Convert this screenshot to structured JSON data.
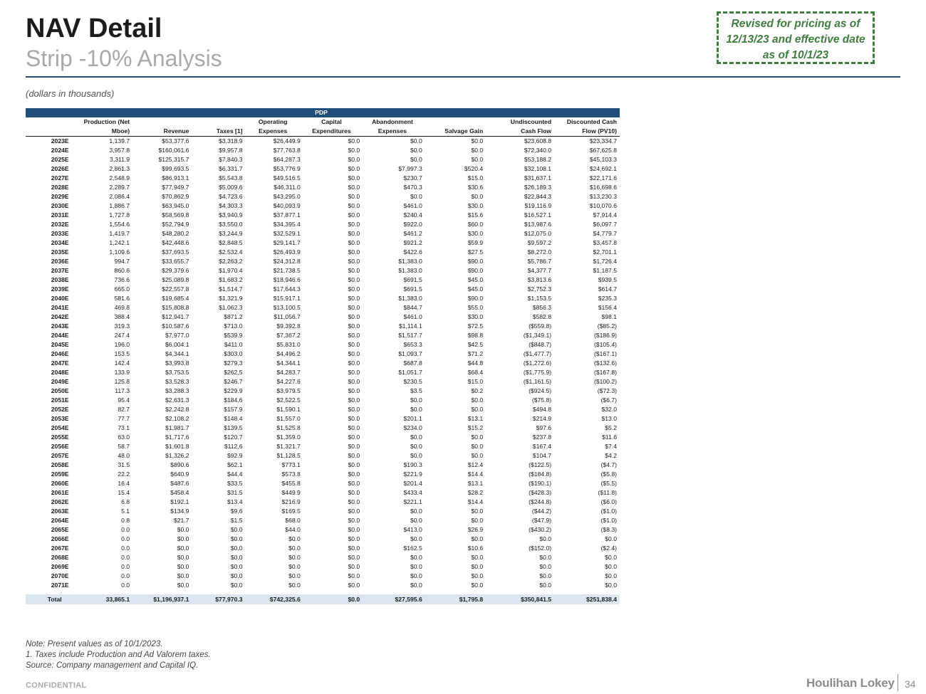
{
  "header": {
    "title": "NAV Detail",
    "subtitle": "Strip -10% Analysis",
    "revised_note": "Revised for pricing as of 12/13/23 and effective date as of 10/1/23",
    "units": "(dollars in thousands)"
  },
  "table": {
    "band_label": "PDP",
    "columns": [
      {
        "top": "Production (Net",
        "bottom": "Mboe)"
      },
      {
        "top": "",
        "bottom": "Revenue"
      },
      {
        "top": "",
        "bottom": "Taxes [1]"
      },
      {
        "top": "Operating",
        "bottom": "Expenses"
      },
      {
        "top": "Capital",
        "bottom": "Expenditures"
      },
      {
        "top": "Abandonment",
        "bottom": "Expenses"
      },
      {
        "top": "",
        "bottom": "Salvage Gain"
      },
      {
        "top": "Undiscounted",
        "bottom": "Cash Flow"
      },
      {
        "top": "Discounted Cash",
        "bottom": "Flow (PV10)"
      }
    ],
    "rows": [
      [
        "2023E",
        "1,139.7",
        "$53,377.6",
        "$3,318.9",
        "$26,449.9",
        "$0.0",
        "$0.0",
        "$0.0",
        "$23,608.8",
        "$23,334.7"
      ],
      [
        "2024E",
        "3,957.8",
        "$160,061.6",
        "$9,957.8",
        "$77,763.8",
        "$0.0",
        "$0.0",
        "$0.0",
        "$72,340.0",
        "$67,625.8"
      ],
      [
        "2025E",
        "3,311.9",
        "$125,315.7",
        "$7,840.3",
        "$64,287.3",
        "$0.0",
        "$0.0",
        "$0.0",
        "$53,188.2",
        "$45,103.3"
      ],
      [
        "2026E",
        "2,861.3",
        "$99,693.5",
        "$6,331.7",
        "$53,776.9",
        "$0.0",
        "$7,997.3",
        "$520.4",
        "$32,108.1",
        "$24,692.1"
      ],
      [
        "2027E",
        "2,548.9",
        "$86,913.1",
        "$5,543.8",
        "$49,516.5",
        "$0.0",
        "$230.7",
        "$15.0",
        "$31,637.1",
        "$22,171.6"
      ],
      [
        "2028E",
        "2,289.7",
        "$77,949.7",
        "$5,009.6",
        "$46,311.0",
        "$0.0",
        "$470.3",
        "$30.6",
        "$26,189.3",
        "$16,698.6"
      ],
      [
        "2029E",
        "2,086.4",
        "$70,862.9",
        "$4,723.6",
        "$43,295.0",
        "$0.0",
        "$0.0",
        "$0.0",
        "$22,844.3",
        "$13,230.3"
      ],
      [
        "2030E",
        "1,886.7",
        "$63,945.0",
        "$4,303.3",
        "$40,093.9",
        "$0.0",
        "$461.0",
        "$30.0",
        "$19,116.9",
        "$10,070.6"
      ],
      [
        "2031E",
        "1,727.8",
        "$58,569.8",
        "$3,940.9",
        "$37,877.1",
        "$0.0",
        "$240.4",
        "$15.6",
        "$16,527.1",
        "$7,914.4"
      ],
      [
        "2032E",
        "1,554.6",
        "$52,794.9",
        "$3,550.0",
        "$34,395.4",
        "$0.0",
        "$922.0",
        "$60.0",
        "$13,987.6",
        "$6,097.7"
      ],
      [
        "2033E",
        "1,419.7",
        "$48,280.2",
        "$3,244.9",
        "$32,529.1",
        "$0.0",
        "$461.2",
        "$30.0",
        "$12,075.0",
        "$4,779.7"
      ],
      [
        "2034E",
        "1,242.1",
        "$42,448.6",
        "$2,848.5",
        "$29,141.7",
        "$0.0",
        "$921.2",
        "$59.9",
        "$9,597.2",
        "$3,457.8"
      ],
      [
        "2035E",
        "1,109.6",
        "$37,693.5",
        "$2,532.4",
        "$26,493.9",
        "$0.0",
        "$422.6",
        "$27.5",
        "$8,272.0",
        "$2,701.1"
      ],
      [
        "2036E",
        "994.7",
        "$33,655.7",
        "$2,263.2",
        "$24,312.8",
        "$0.0",
        "$1,383.0",
        "$90.0",
        "$5,786.7",
        "$1,726.4"
      ],
      [
        "2037E",
        "860.6",
        "$29,379.6",
        "$1,970.4",
        "$21,738.5",
        "$0.0",
        "$1,383.0",
        "$90.0",
        "$4,377.7",
        "$1,187.5"
      ],
      [
        "2038E",
        "736.6",
        "$25,089.8",
        "$1,683.2",
        "$18,946.6",
        "$0.0",
        "$691.5",
        "$45.0",
        "$3,813.6",
        "$939.5"
      ],
      [
        "2039E",
        "665.0",
        "$22,557.8",
        "$1,514.7",
        "$17,644.3",
        "$0.0",
        "$691.5",
        "$45.0",
        "$2,752.3",
        "$614.7"
      ],
      [
        "2040E",
        "581.6",
        "$19,685.4",
        "$1,321.9",
        "$15,917.1",
        "$0.0",
        "$1,383.0",
        "$90.0",
        "$1,153.5",
        "$235.3"
      ],
      [
        "2041E",
        "469.8",
        "$15,808.8",
        "$1,062.3",
        "$13,100.5",
        "$0.0",
        "$844.7",
        "$55.0",
        "$856.3",
        "$156.4"
      ],
      [
        "2042E",
        "388.4",
        "$12,941.7",
        "$871.2",
        "$11,056.7",
        "$0.0",
        "$461.0",
        "$30.0",
        "$582.8",
        "$98.1"
      ],
      [
        "2043E",
        "319.3",
        "$10,587.6",
        "$713.0",
        "$9,392.8",
        "$0.0",
        "$1,114.1",
        "$72.5",
        "($559.8)",
        "($85.2)"
      ],
      [
        "2044E",
        "247.4",
        "$7,977.0",
        "$539.9",
        "$7,367.2",
        "$0.0",
        "$1,517.7",
        "$98.8",
        "($1,349.1)",
        "($186.9)"
      ],
      [
        "2045E",
        "196.0",
        "$6,004.1",
        "$411.0",
        "$5,831.0",
        "$0.0",
        "$653.3",
        "$42.5",
        "($848.7)",
        "($105.4)"
      ],
      [
        "2046E",
        "153.5",
        "$4,344.1",
        "$303.0",
        "$4,496.2",
        "$0.0",
        "$1,093.7",
        "$71.2",
        "($1,477.7)",
        "($167.1)"
      ],
      [
        "2047E",
        "142.4",
        "$3,993.8",
        "$279.3",
        "$4,344.1",
        "$0.0",
        "$687.8",
        "$44.8",
        "($1,272.6)",
        "($132.6)"
      ],
      [
        "2048E",
        "133.9",
        "$3,753.5",
        "$262.5",
        "$4,283.7",
        "$0.0",
        "$1,051.7",
        "$68.4",
        "($1,775.9)",
        "($167.8)"
      ],
      [
        "2049E",
        "125.8",
        "$3,528.3",
        "$246.7",
        "$4,227.6",
        "$0.0",
        "$230.5",
        "$15.0",
        "($1,161.5)",
        "($100.2)"
      ],
      [
        "2050E",
        "117.3",
        "$3,288.3",
        "$229.9",
        "$3,979.5",
        "$0.0",
        "$3.5",
        "$0.2",
        "($924.5)",
        "($72.3)"
      ],
      [
        "2051E",
        "95.4",
        "$2,631.3",
        "$184.6",
        "$2,522.5",
        "$0.0",
        "$0.0",
        "$0.0",
        "($75.8)",
        "($6.7)"
      ],
      [
        "2052E",
        "82.7",
        "$2,242.8",
        "$157.9",
        "$1,590.1",
        "$0.0",
        "$0.0",
        "$0.0",
        "$494.8",
        "$32.0"
      ],
      [
        "2053E",
        "77.7",
        "$2,108.2",
        "$148.4",
        "$1,557.0",
        "$0.0",
        "$201.1",
        "$13.1",
        "$214.9",
        "$13.0"
      ],
      [
        "2054E",
        "73.1",
        "$1,981.7",
        "$139.5",
        "$1,525.8",
        "$0.0",
        "$234.0",
        "$15.2",
        "$97.6",
        "$5.2"
      ],
      [
        "2055E",
        "63.0",
        "$1,717.6",
        "$120.7",
        "$1,359.0",
        "$0.0",
        "$0.0",
        "$0.0",
        "$237.8",
        "$11.6"
      ],
      [
        "2056E",
        "58.7",
        "$1,601.8",
        "$112.6",
        "$1,321.7",
        "$0.0",
        "$0.0",
        "$0.0",
        "$167.4",
        "$7.4"
      ],
      [
        "2057E",
        "48.0",
        "$1,326.2",
        "$92.9",
        "$1,128.5",
        "$0.0",
        "$0.0",
        "$0.0",
        "$104.7",
        "$4.2"
      ],
      [
        "2058E",
        "31.5",
        "$890.6",
        "$62.1",
        "$773.1",
        "$0.0",
        "$190.3",
        "$12.4",
        "($122.5)",
        "($4.7)"
      ],
      [
        "2059E",
        "22.2",
        "$640.9",
        "$44.4",
        "$573.8",
        "$0.0",
        "$221.9",
        "$14.4",
        "($184.8)",
        "($5.8)"
      ],
      [
        "2060E",
        "16.4",
        "$487.6",
        "$33.5",
        "$455.8",
        "$0.0",
        "$201.4",
        "$13.1",
        "($190.1)",
        "($5.5)"
      ],
      [
        "2061E",
        "15.4",
        "$458.4",
        "$31.5",
        "$449.9",
        "$0.0",
        "$433.4",
        "$28.2",
        "($428.3)",
        "($11.8)"
      ],
      [
        "2062E",
        "6.8",
        "$192.1",
        "$13.4",
        "$216.9",
        "$0.0",
        "$221.1",
        "$14.4",
        "($244.8)",
        "($6.0)"
      ],
      [
        "2063E",
        "5.1",
        "$134.9",
        "$9.6",
        "$169.5",
        "$0.0",
        "$0.0",
        "$0.0",
        "($44.2)",
        "($1.0)"
      ],
      [
        "2064E",
        "0.8",
        "$21.7",
        "$1.5",
        "$68.0",
        "$0.0",
        "$0.0",
        "$0.0",
        "($47.9)",
        "($1.0)"
      ],
      [
        "2065E",
        "0.0",
        "$0.0",
        "$0.0",
        "$44.0",
        "$0.0",
        "$413.0",
        "$26.9",
        "($430.2)",
        "($8.3)"
      ],
      [
        "2066E",
        "0.0",
        "$0.0",
        "$0.0",
        "$0.0",
        "$0.0",
        "$0.0",
        "$0.0",
        "$0.0",
        "$0.0"
      ],
      [
        "2067E",
        "0.0",
        "$0.0",
        "$0.0",
        "$0.0",
        "$0.0",
        "$162.5",
        "$10.6",
        "($152.0)",
        "($2.4)"
      ],
      [
        "2068E",
        "0.0",
        "$0.0",
        "$0.0",
        "$0.0",
        "$0.0",
        "$0.0",
        "$0.0",
        "$0.0",
        "$0.0"
      ],
      [
        "2069E",
        "0.0",
        "$0.0",
        "$0.0",
        "$0.0",
        "$0.0",
        "$0.0",
        "$0.0",
        "$0.0",
        "$0.0"
      ],
      [
        "2070E",
        "0.0",
        "$0.0",
        "$0.0",
        "$0.0",
        "$0.0",
        "$0.0",
        "$0.0",
        "$0.0",
        "$0.0"
      ],
      [
        "2071E",
        "0.0",
        "$0.0",
        "$0.0",
        "$0.0",
        "$0.0",
        "$0.0",
        "$0.0",
        "$0.0",
        "$0.0"
      ]
    ],
    "total": [
      "Total",
      "33,865.1",
      "$1,196,937.1",
      "$77,970.3",
      "$742,325.6",
      "$0.0",
      "$27,595.6",
      "$1,795.8",
      "$350,841.5",
      "$251,838.4"
    ]
  },
  "notes": [
    "Note: Present values as of 10/1/2023.",
    "1. Taxes include Production and Ad Valorem taxes.",
    "Source: Company management and Capital IQ."
  ],
  "footer": {
    "confidential": "CONFIDENTIAL",
    "logo_text": "Houlihan Lokey",
    "page_number": "34"
  }
}
